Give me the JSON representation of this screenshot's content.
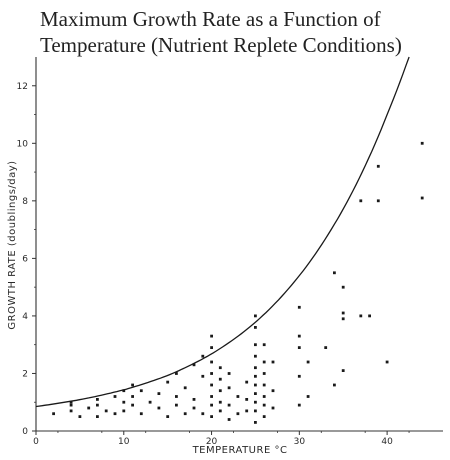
{
  "chart_data": {
    "type": "scatter",
    "title": "Maximum Growth Rate as a Function of Temperature (Nutrient Replete Conditions)",
    "xlabel": "TEMPERATURE °C",
    "ylabel": "GROWTH RATE (doublings/day)",
    "xlim": [
      0,
      45
    ],
    "ylim": [
      0,
      13
    ],
    "x_ticks": [
      0,
      10,
      20,
      30,
      40
    ],
    "y_ticks": [
      0,
      2,
      4,
      6,
      8,
      10,
      12
    ],
    "grid": false,
    "legend": "none",
    "colors": {
      "points": "#1a1a1a",
      "curve": "#1a1a1a",
      "axes": "#333333"
    },
    "curve": {
      "description": "upper envelope",
      "x": [
        0,
        5,
        10,
        15,
        20,
        25,
        30,
        35,
        40,
        42.5
      ],
      "y": [
        0.85,
        1.09,
        1.43,
        1.93,
        2.68,
        3.78,
        5.4,
        7.72,
        11.0,
        13.0
      ]
    },
    "series": [
      {
        "points": [
          [
            2,
            0.6
          ],
          [
            4,
            0.7
          ],
          [
            4,
            0.9
          ],
          [
            4,
            1.0
          ],
          [
            5,
            0.5
          ],
          [
            6,
            0.8
          ],
          [
            7,
            0.5
          ],
          [
            7,
            0.9
          ],
          [
            7,
            1.1
          ],
          [
            8,
            0.7
          ],
          [
            9,
            1.2
          ],
          [
            9,
            0.6
          ],
          [
            10,
            1.4
          ],
          [
            10,
            1.0
          ],
          [
            10,
            0.7
          ],
          [
            11,
            1.6
          ],
          [
            11,
            1.2
          ],
          [
            11,
            0.9
          ],
          [
            12,
            1.4
          ],
          [
            12,
            0.6
          ],
          [
            13,
            1.0
          ],
          [
            14,
            1.3
          ],
          [
            14,
            0.8
          ],
          [
            15,
            1.7
          ],
          [
            15,
            0.5
          ],
          [
            16,
            1.2
          ],
          [
            16,
            0.9
          ],
          [
            16,
            2.0
          ],
          [
            17,
            1.5
          ],
          [
            17,
            0.6
          ],
          [
            18,
            2.3
          ],
          [
            18,
            1.1
          ],
          [
            18,
            0.8
          ],
          [
            19,
            1.9
          ],
          [
            19,
            2.6
          ],
          [
            19,
            0.6
          ],
          [
            20,
            3.3
          ],
          [
            20,
            2.9
          ],
          [
            20,
            2.4
          ],
          [
            20,
            2.0
          ],
          [
            20,
            1.6
          ],
          [
            20,
            1.2
          ],
          [
            20,
            0.9
          ],
          [
            20,
            0.5
          ],
          [
            21,
            2.2
          ],
          [
            21,
            1.8
          ],
          [
            21,
            1.4
          ],
          [
            21,
            1.0
          ],
          [
            21,
            0.7
          ],
          [
            22,
            2.0
          ],
          [
            22,
            1.5
          ],
          [
            22,
            0.9
          ],
          [
            22,
            0.4
          ],
          [
            23,
            1.2
          ],
          [
            23,
            0.6
          ],
          [
            24,
            1.7
          ],
          [
            24,
            1.1
          ],
          [
            24,
            0.7
          ],
          [
            25,
            4.0
          ],
          [
            25,
            3.6
          ],
          [
            25,
            3.0
          ],
          [
            25,
            2.6
          ],
          [
            25,
            2.2
          ],
          [
            25,
            1.9
          ],
          [
            25,
            1.6
          ],
          [
            25,
            1.3
          ],
          [
            25,
            1.0
          ],
          [
            25,
            0.7
          ],
          [
            25,
            0.3
          ],
          [
            26,
            3.0
          ],
          [
            26,
            2.4
          ],
          [
            26,
            2.0
          ],
          [
            26,
            1.6
          ],
          [
            26,
            1.2
          ],
          [
            26,
            0.9
          ],
          [
            26,
            0.5
          ],
          [
            27,
            2.4
          ],
          [
            27,
            1.4
          ],
          [
            27,
            0.8
          ],
          [
            30,
            4.3
          ],
          [
            30,
            3.3
          ],
          [
            30,
            2.9
          ],
          [
            30,
            1.9
          ],
          [
            30,
            0.9
          ],
          [
            31,
            2.4
          ],
          [
            31,
            1.2
          ],
          [
            33,
            2.9
          ],
          [
            34,
            5.5
          ],
          [
            34,
            1.6
          ],
          [
            35,
            5.0
          ],
          [
            35,
            4.1
          ],
          [
            35,
            3.9
          ],
          [
            35,
            2.1
          ],
          [
            37,
            8.0
          ],
          [
            37,
            4.0
          ],
          [
            38,
            4.0
          ],
          [
            39,
            9.2
          ],
          [
            39,
            8.0
          ],
          [
            40,
            2.4
          ],
          [
            44,
            10.0
          ],
          [
            44,
            8.1
          ]
        ]
      }
    ]
  }
}
